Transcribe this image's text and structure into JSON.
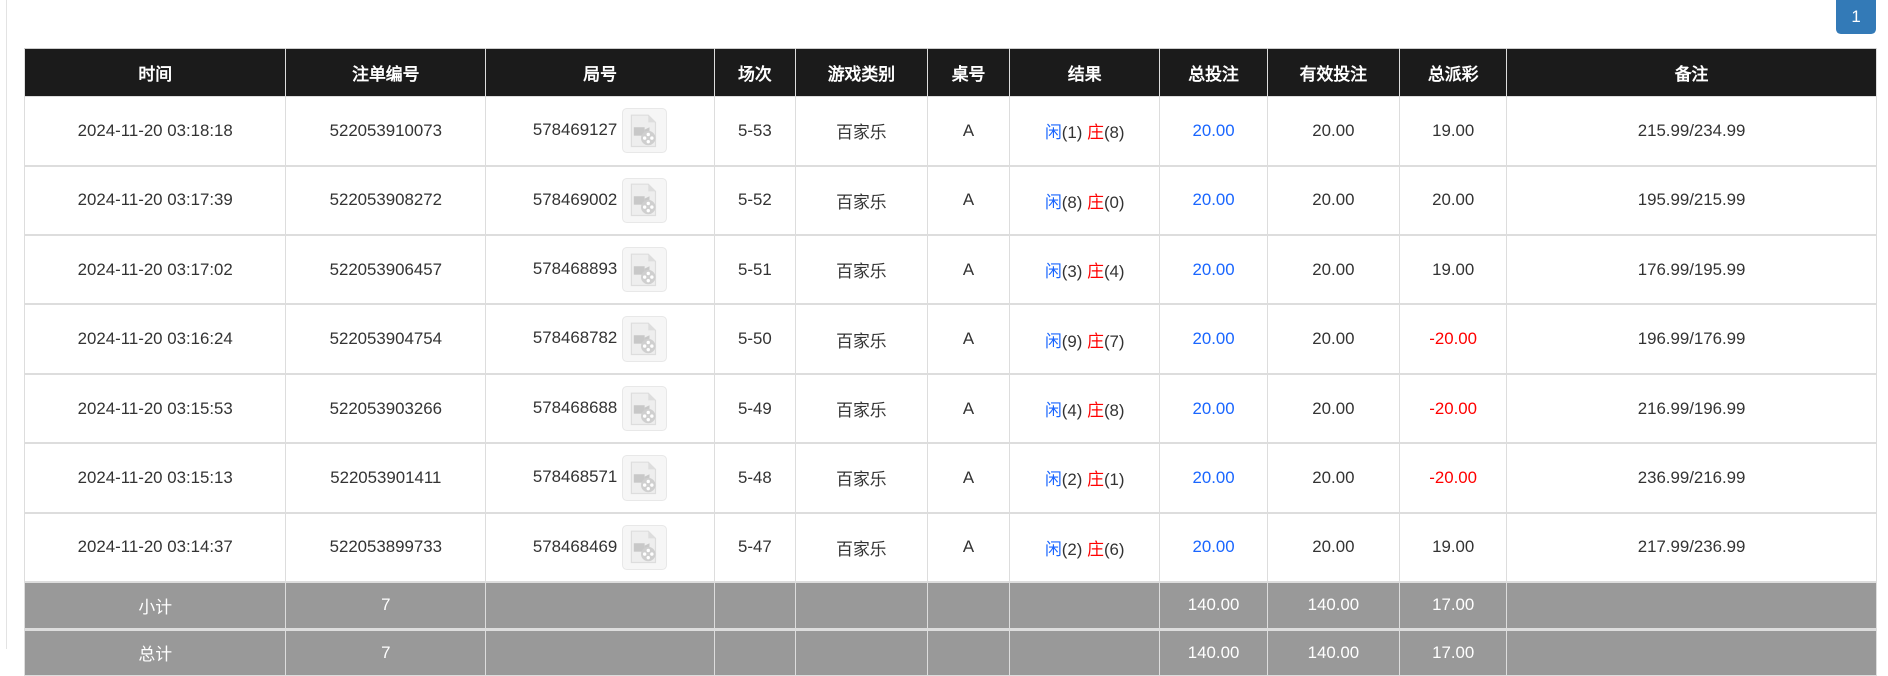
{
  "pagination": {
    "current_page": "1"
  },
  "table": {
    "headers": [
      "时间",
      "注单编号",
      "局号",
      "场次",
      "游戏类别",
      "桌号",
      "结果",
      "总投注",
      "有效投注",
      "总派彩",
      "备注"
    ],
    "rows": [
      {
        "time": "2024-11-20 03:18:18",
        "bet_id": "522053910073",
        "round": "578469127",
        "session": "5-53",
        "game": "百家乐",
        "table": "A",
        "player_label": "闲",
        "player_val": "(1)",
        "banker_label": "庄",
        "banker_val": "(8)",
        "total_bet": "20.00",
        "valid_bet": "20.00",
        "payout": "19.00",
        "payout_negative": false,
        "note": "215.99/234.99"
      },
      {
        "time": "2024-11-20 03:17:39",
        "bet_id": "522053908272",
        "round": "578469002",
        "session": "5-52",
        "game": "百家乐",
        "table": "A",
        "player_label": "闲",
        "player_val": "(8)",
        "banker_label": "庄",
        "banker_val": "(0)",
        "total_bet": "20.00",
        "valid_bet": "20.00",
        "payout": "20.00",
        "payout_negative": false,
        "note": "195.99/215.99"
      },
      {
        "time": "2024-11-20 03:17:02",
        "bet_id": "522053906457",
        "round": "578468893",
        "session": "5-51",
        "game": "百家乐",
        "table": "A",
        "player_label": "闲",
        "player_val": "(3)",
        "banker_label": "庄",
        "banker_val": "(4)",
        "total_bet": "20.00",
        "valid_bet": "20.00",
        "payout": "19.00",
        "payout_negative": false,
        "note": "176.99/195.99"
      },
      {
        "time": "2024-11-20 03:16:24",
        "bet_id": "522053904754",
        "round": "578468782",
        "session": "5-50",
        "game": "百家乐",
        "table": "A",
        "player_label": "闲",
        "player_val": "(9)",
        "banker_label": "庄",
        "banker_val": "(7)",
        "total_bet": "20.00",
        "valid_bet": "20.00",
        "payout": "-20.00",
        "payout_negative": true,
        "note": "196.99/176.99"
      },
      {
        "time": "2024-11-20 03:15:53",
        "bet_id": "522053903266",
        "round": "578468688",
        "session": "5-49",
        "game": "百家乐",
        "table": "A",
        "player_label": "闲",
        "player_val": "(4)",
        "banker_label": "庄",
        "banker_val": "(8)",
        "total_bet": "20.00",
        "valid_bet": "20.00",
        "payout": "-20.00",
        "payout_negative": true,
        "note": "216.99/196.99"
      },
      {
        "time": "2024-11-20 03:15:13",
        "bet_id": "522053901411",
        "round": "578468571",
        "session": "5-48",
        "game": "百家乐",
        "table": "A",
        "player_label": "闲",
        "player_val": "(2)",
        "banker_label": "庄",
        "banker_val": "(1)",
        "total_bet": "20.00",
        "valid_bet": "20.00",
        "payout": "-20.00",
        "payout_negative": true,
        "note": "236.99/216.99"
      },
      {
        "time": "2024-11-20 03:14:37",
        "bet_id": "522053899733",
        "round": "578468469",
        "session": "5-47",
        "game": "百家乐",
        "table": "A",
        "player_label": "闲",
        "player_val": "(2)",
        "banker_label": "庄",
        "banker_val": "(6)",
        "total_bet": "20.00",
        "valid_bet": "20.00",
        "payout": "19.00",
        "payout_negative": false,
        "note": "217.99/236.99"
      }
    ],
    "subtotal": {
      "label": "小计",
      "count": "7",
      "total_bet": "140.00",
      "valid_bet": "140.00",
      "payout": "17.00"
    },
    "total": {
      "label": "总计",
      "count": "7",
      "total_bet": "140.00",
      "valid_bet": "140.00",
      "payout": "17.00"
    }
  },
  "colors": {
    "header_bg": "#1b1b1b",
    "summary_bg": "#999999",
    "player": "#1a66ff",
    "banker": "#ff0000",
    "negative": "#ff0000",
    "pager": "#337ab7"
  },
  "icons": {
    "replay": "video-replay-icon"
  }
}
